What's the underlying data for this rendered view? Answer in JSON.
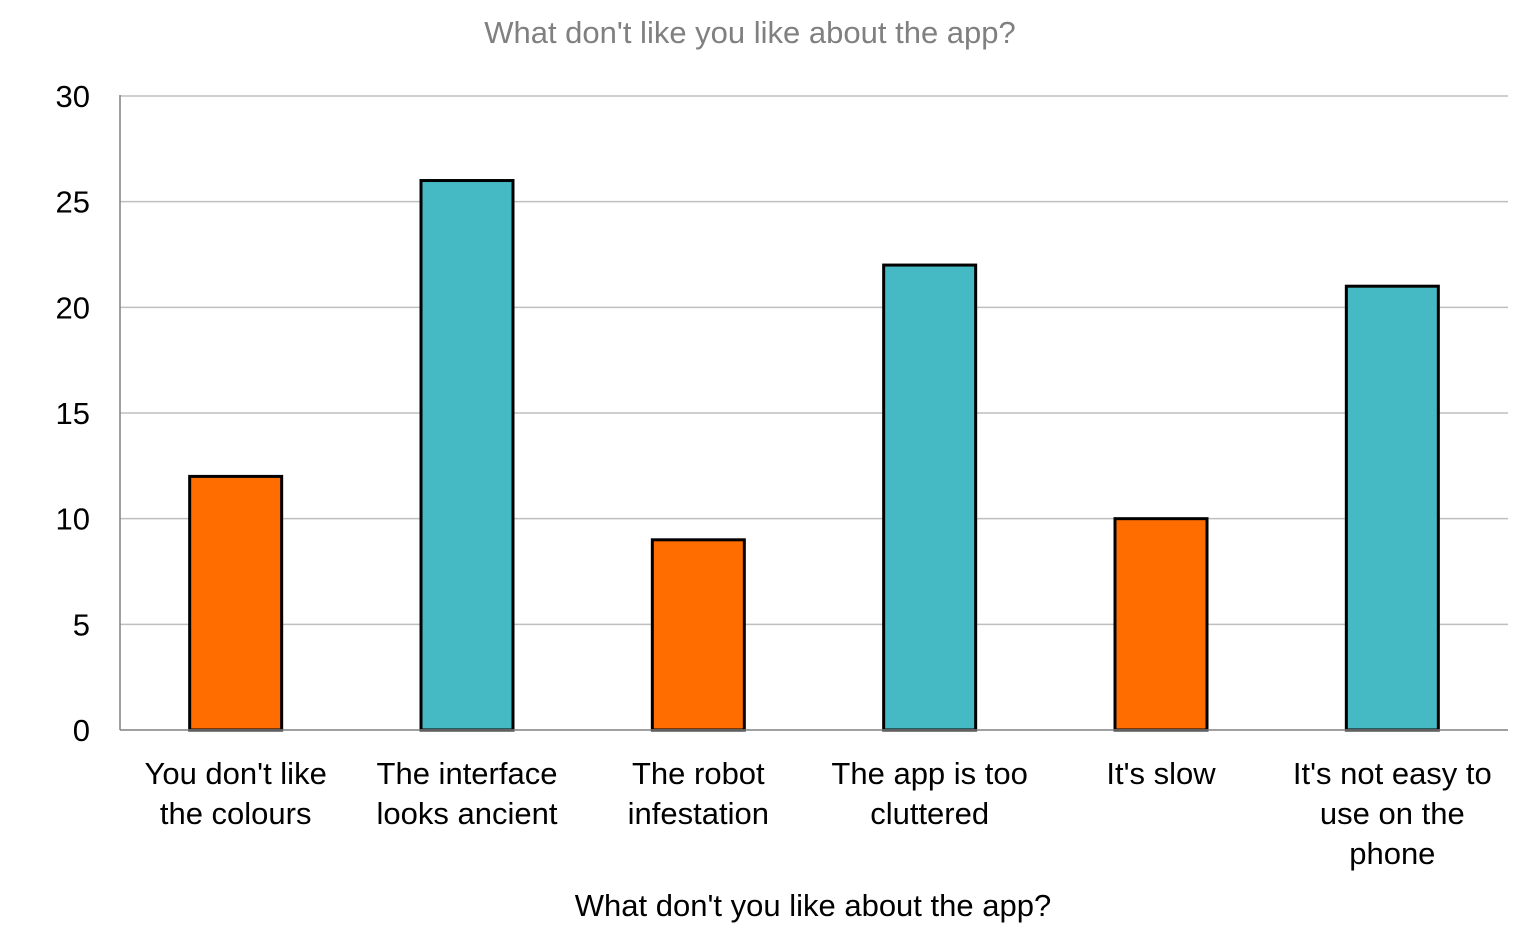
{
  "chart_data": {
    "type": "bar",
    "title": "What don't like you like about the app?",
    "xlabel": "What don't you like about the app?",
    "ylabel": "",
    "ylim": [
      0,
      30
    ],
    "yticks": [
      0,
      5,
      10,
      15,
      20,
      25,
      30
    ],
    "grid": true,
    "legend": "none",
    "categories": [
      [
        "You don't like",
        "the colours"
      ],
      [
        "The interface",
        "looks ancient"
      ],
      [
        "The robot",
        "infestation"
      ],
      [
        "The app is too",
        "cluttered"
      ],
      [
        "It's slow"
      ],
      [
        "It's not easy to",
        "use on the",
        "phone"
      ]
    ],
    "values": [
      12,
      26,
      9,
      22,
      10,
      21
    ],
    "bar_colors": [
      "#ff6d00",
      "#45bac4",
      "#ff6d00",
      "#45bac4",
      "#ff6d00",
      "#45bac4"
    ]
  }
}
